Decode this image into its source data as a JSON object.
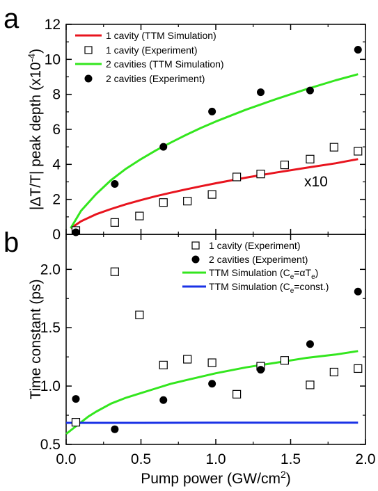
{
  "chart_data": [
    {
      "panel": "a",
      "type": "scatter",
      "ylabel": "|ΔT/T| peak depth (x10",
      "ylabel_exp": "-4",
      "ylabel_close": ")",
      "xlim": [
        0,
        2.0
      ],
      "ylim": [
        0,
        12
      ],
      "yticks": [
        0,
        2,
        4,
        6,
        8,
        10,
        12
      ],
      "annotation": "x10",
      "legend_position": "top-left",
      "series": [
        {
          "name": "1 cavity (TTM Simulation)",
          "kind": "line",
          "color": "#e8141e",
          "x": [
            0.03,
            0.1,
            0.2,
            0.3,
            0.4,
            0.5,
            0.6,
            0.7,
            0.8,
            0.9,
            1.0,
            1.2,
            1.4,
            1.6,
            1.8,
            1.95
          ],
          "y": [
            0.35,
            0.75,
            1.15,
            1.45,
            1.72,
            1.96,
            2.18,
            2.38,
            2.57,
            2.75,
            2.92,
            3.24,
            3.53,
            3.8,
            4.06,
            4.3
          ]
        },
        {
          "name": "1 cavity (Experiment)",
          "kind": "open-square",
          "x": [
            0.065,
            0.325,
            0.49,
            0.65,
            0.81,
            0.975,
            1.14,
            1.3,
            1.46,
            1.63,
            1.79,
            1.95
          ],
          "y": [
            0.22,
            0.68,
            1.05,
            1.82,
            1.9,
            2.28,
            3.28,
            3.45,
            3.97,
            4.3,
            4.98,
            4.75
          ]
        },
        {
          "name": "2 cavities (TTM Simulation)",
          "kind": "line",
          "color": "#33e61e",
          "x": [
            0.03,
            0.1,
            0.2,
            0.3,
            0.4,
            0.5,
            0.6,
            0.7,
            0.8,
            0.9,
            1.0,
            1.2,
            1.4,
            1.6,
            1.8,
            1.95
          ],
          "y": [
            0.35,
            1.35,
            2.3,
            3.1,
            3.75,
            4.3,
            4.8,
            5.25,
            5.68,
            6.08,
            6.45,
            7.12,
            7.72,
            8.28,
            8.8,
            9.15
          ]
        },
        {
          "name": "2 cavities (Experiment)",
          "kind": "filled-circle",
          "x": [
            0.065,
            0.325,
            0.65,
            0.975,
            1.3,
            1.63,
            1.95
          ],
          "y": [
            0.12,
            2.88,
            5.0,
            7.02,
            8.12,
            8.22,
            10.55
          ]
        }
      ]
    },
    {
      "panel": "b",
      "type": "scatter",
      "xlabel": "Pump power (GW/cm",
      "xlabel_exp": "2",
      "xlabel_close": ")",
      "ylabel": "Time constant (ps)",
      "xlim": [
        0,
        2.0
      ],
      "ylim": [
        0.5,
        2.3
      ],
      "xticks": [
        0.0,
        0.5,
        1.0,
        1.5,
        2.0
      ],
      "xtick_labels": [
        "0.0",
        "0.5",
        "1.0",
        "1.5",
        "2.0"
      ],
      "yticks": [
        0.5,
        1.0,
        1.5,
        2.0
      ],
      "ytick_labels": [
        "0.5",
        "1.0",
        "1.5",
        "2.0"
      ],
      "legend_position": "top-right",
      "series": [
        {
          "name": "1 cavity (Experiment)",
          "kind": "open-square",
          "x": [
            0.065,
            0.325,
            0.49,
            0.65,
            0.81,
            0.975,
            1.14,
            1.3,
            1.46,
            1.63,
            1.79,
            1.95
          ],
          "y": [
            0.69,
            1.98,
            1.61,
            1.18,
            1.23,
            1.2,
            0.93,
            1.17,
            1.22,
            1.01,
            1.12,
            1.15
          ]
        },
        {
          "name": "2 cavities (Experiment)",
          "kind": "filled-circle",
          "x": [
            0.065,
            0.325,
            0.65,
            0.975,
            1.3,
            1.63,
            1.95
          ],
          "y": [
            0.89,
            0.63,
            0.88,
            1.02,
            1.14,
            1.36,
            1.81
          ]
        },
        {
          "name": "TTM Simulation (C",
          "name_sub": "e",
          "name_rest": "=αT",
          "name_sub2": "e",
          "name_close": ")",
          "kind": "line",
          "color": "#33e61e",
          "x": [
            0.0,
            0.05,
            0.1,
            0.15,
            0.2,
            0.3,
            0.4,
            0.5,
            0.6,
            0.7,
            0.8,
            1.0,
            1.2,
            1.4,
            1.6,
            1.8,
            1.95
          ],
          "y": [
            0.59,
            0.64,
            0.69,
            0.74,
            0.78,
            0.85,
            0.9,
            0.94,
            0.98,
            1.02,
            1.05,
            1.11,
            1.16,
            1.2,
            1.24,
            1.27,
            1.3
          ]
        },
        {
          "name": "TTM Simulation (C",
          "name_sub": "e",
          "name_rest": "=const.)",
          "kind": "line",
          "color": "#1a32e6",
          "x": [
            0.0,
            0.5,
            1.0,
            1.5,
            1.95
          ],
          "y": [
            0.685,
            0.685,
            0.686,
            0.686,
            0.686
          ]
        }
      ]
    }
  ]
}
